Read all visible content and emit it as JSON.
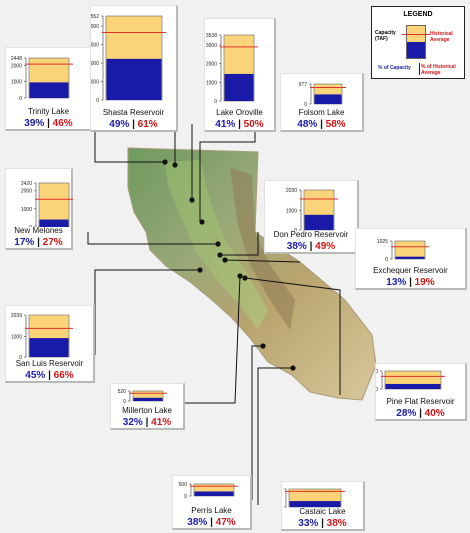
{
  "legend": {
    "title": "LEGEND",
    "capacity_label": "Capacity (TAF)",
    "historical_label": "Historical Average",
    "pct_capacity_label": "% of Capacity",
    "pct_historical_label": "% of Historical Average"
  },
  "colors": {
    "capacity_fill": "#fbd479",
    "storage_fill": "#1a1aa8",
    "historical_line": "#e0302a",
    "pct_capacity_text": "#1b1ba8",
    "pct_historical_text": "#d01616"
  },
  "chart_data": {
    "type": "bar",
    "description_units": "thousand acre-feet (TAF)",
    "reservoirs": [
      {
        "name": "Trinity Lake",
        "capacity": 2448,
        "ticks": [
          2448,
          2000,
          1000,
          0
        ],
        "pct_capacity": "39%",
        "pct_historical": "46%",
        "storage": 955,
        "historical": 2076
      },
      {
        "name": "Shasta Reservoir",
        "capacity": 4552,
        "ticks": [
          4552,
          4000,
          3000,
          2000,
          1000,
          0
        ],
        "pct_capacity": "49%",
        "pct_historical": "61%",
        "storage": 2230,
        "historical": 3656
      },
      {
        "name": "Lake Oroville",
        "capacity": 3538,
        "ticks": [
          3538,
          3000,
          2000,
          1000,
          0
        ],
        "pct_capacity": "41%",
        "pct_historical": "50%",
        "storage": 1451,
        "historical": 2902
      },
      {
        "name": "Folsom Lake",
        "capacity": 977,
        "ticks": [
          977,
          0
        ],
        "pct_capacity": "48%",
        "pct_historical": "58%",
        "storage": 469,
        "historical": 809
      },
      {
        "name": "New Melones",
        "capacity": 2420,
        "ticks": [
          2420,
          2000,
          1000,
          0
        ],
        "pct_capacity": "17%",
        "pct_historical": "27%",
        "storage": 411,
        "historical": 1523
      },
      {
        "name": "Don Pedro Reservoir",
        "capacity": 2030,
        "ticks": [
          2030,
          1000,
          0
        ],
        "pct_capacity": "38%",
        "pct_historical": "49%",
        "storage": 771,
        "historical": 1574
      },
      {
        "name": "Exchequer Reservoir",
        "capacity": 1025,
        "ticks": [
          1025,
          0
        ],
        "pct_capacity": "13%",
        "pct_historical": "19%",
        "storage": 133,
        "historical": 700
      },
      {
        "name": "San Luis Reservoir",
        "capacity": 2039,
        "ticks": [
          2039,
          1000,
          0
        ],
        "pct_capacity": "45%",
        "pct_historical": "66%",
        "storage": 918,
        "historical": 1390
      },
      {
        "name": "Millerton Lake",
        "capacity": 520,
        "ticks": [
          520,
          0
        ],
        "pct_capacity": "32%",
        "pct_historical": "41%",
        "storage": 166,
        "historical": 406
      },
      {
        "name": "Pine Flat Reservoir",
        "capacity": 1000,
        "ticks": [
          1000,
          0
        ],
        "pct_capacity": "28%",
        "pct_historical": "40%",
        "storage": 280,
        "historical": 700
      },
      {
        "name": "Perris Lake",
        "capacity": 500,
        "ticks": [
          500,
          0
        ],
        "pct_capacity": "38%",
        "pct_historical": "47%",
        "storage": 190,
        "historical": 404
      },
      {
        "name": "Castaic Lake",
        "capacity": 325,
        "ticks": [
          325,
          0
        ],
        "pct_capacity": "33%",
        "pct_historical": "38%",
        "storage": 107,
        "historical": 282
      }
    ]
  }
}
